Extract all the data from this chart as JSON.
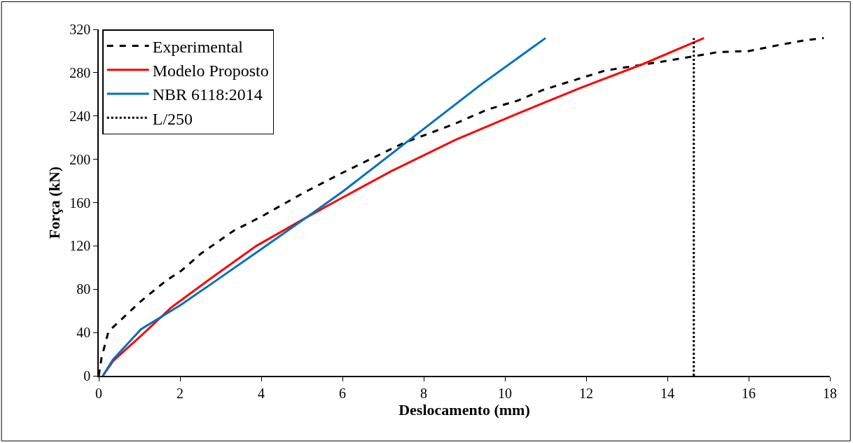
{
  "chart_data": {
    "type": "line",
    "xlabel": "Deslocamento (mm)",
    "ylabel": "Força (kN)",
    "xlim": [
      0,
      18
    ],
    "xticks": [
      0,
      2,
      4,
      6,
      8,
      10,
      12,
      14,
      16,
      18
    ],
    "ylim": [
      0,
      320
    ],
    "yticks": [
      0,
      40,
      80,
      120,
      160,
      200,
      240,
      280,
      320
    ],
    "legend": "top left",
    "marker": "none",
    "series": [
      {
        "name": "Experimental",
        "color": "#000000",
        "line_style": "dashed",
        "x": [
          0,
          0.07,
          0.24,
          1.04,
          1.66,
          2.03,
          2.52,
          3.32,
          4.0,
          5.04,
          5.97,
          7.5,
          8.78,
          9.57,
          10.3,
          10.93,
          12.47,
          14.0,
          14.62,
          15.24,
          16.0,
          16.8,
          17.4,
          17.85
        ],
        "values": [
          0,
          17,
          41,
          69,
          88,
          97,
          113,
          134,
          147,
          169,
          187,
          215,
          233,
          246,
          254,
          264,
          282,
          291,
          295,
          299,
          300,
          306,
          310,
          312
        ]
      },
      {
        "name": "Modelo Proposto",
        "color": "#ff0000",
        "line_style": "solid",
        "x": [
          0.1,
          0.36,
          1.04,
          1.78,
          2.76,
          3.88,
          5.1,
          5.97,
          7.2,
          8.78,
          10.3,
          11.86,
          13.4,
          14.9
        ],
        "values": [
          0,
          14,
          37,
          63,
          90,
          120,
          146,
          164,
          189,
          218,
          242,
          266,
          288,
          312
        ]
      },
      {
        "name": "NBR 6118:2014",
        "color": "#0070c0",
        "line_style": "solid",
        "x": [
          0.1,
          0.35,
          1.04,
          2.0,
          2.89,
          4.0,
          5.1,
          6.0,
          9.41,
          11.0
        ],
        "values": [
          0,
          15,
          43,
          65,
          88,
          117,
          146,
          170,
          269,
          312
        ]
      },
      {
        "name": "L/250",
        "color": "#000000",
        "line_style": "dotted",
        "x": [
          14.65,
          14.65
        ],
        "values": [
          0,
          312
        ]
      }
    ]
  }
}
